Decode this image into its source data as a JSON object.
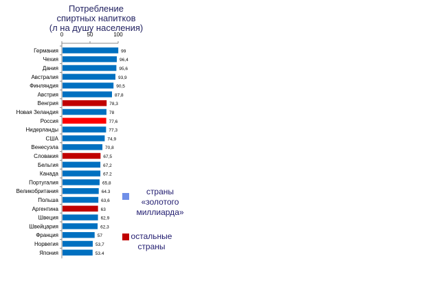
{
  "chart_data": {
    "type": "bar",
    "orientation": "horizontal",
    "title_lines": [
      "Потребление",
      "спиртных напитков",
      "(л на душу населения)"
    ],
    "xlim": [
      0,
      100
    ],
    "xticks": [
      "0",
      "50",
      "100"
    ],
    "categories": [
      "Германия",
      "Чехия",
      "Дания",
      "Австралия",
      "Финляндия",
      "Австрия",
      "Венгрия",
      "Новая Зеландия",
      "Россия",
      "Нидерланды",
      "США",
      "Венесуэла",
      "Словакия",
      "Бельгия",
      "Канада",
      "Португалия",
      "Великобритания",
      "Польша",
      "Аргентина",
      "Швеция",
      "Швейцария",
      "Франция",
      "Норвегия",
      "Япония"
    ],
    "values": [
      99,
      96.4,
      95.6,
      93.9,
      90.5,
      87.8,
      78.3,
      78,
      77.6,
      77.3,
      74.9,
      70.8,
      67.5,
      67.2,
      67.2,
      65.8,
      64.3,
      63.6,
      63,
      62.9,
      62.3,
      57,
      53.7,
      53.4
    ],
    "labels": [
      "99",
      "96,4",
      "95,6",
      "93,9",
      "90,5",
      "87,8",
      "78,3",
      "78",
      "77,6",
      "77,3",
      "74,9",
      "70,8",
      "67,5",
      "67,2",
      "67.2",
      "65,8",
      "64.3",
      "63,6",
      "63",
      "62,9",
      "62,3",
      "57",
      "53,7",
      "53.4"
    ],
    "groups": [
      "g",
      "g",
      "g",
      "g",
      "g",
      "g",
      "o",
      "g",
      "r",
      "g",
      "g",
      "g",
      "o",
      "g",
      "g",
      "g",
      "g",
      "g",
      "o",
      "g",
      "g",
      "g",
      "g",
      "g"
    ],
    "colors": {
      "g": "#0070c0",
      "o": "#c00000",
      "r": "#ff0000"
    },
    "legend": [
      {
        "label_lines": [
          "страны",
          "«золотого",
          "миллиарда»"
        ],
        "color": "#6f8fe8"
      },
      {
        "label_lines": [
          "остальные",
          "страны"
        ],
        "color": "#c00000"
      }
    ]
  }
}
